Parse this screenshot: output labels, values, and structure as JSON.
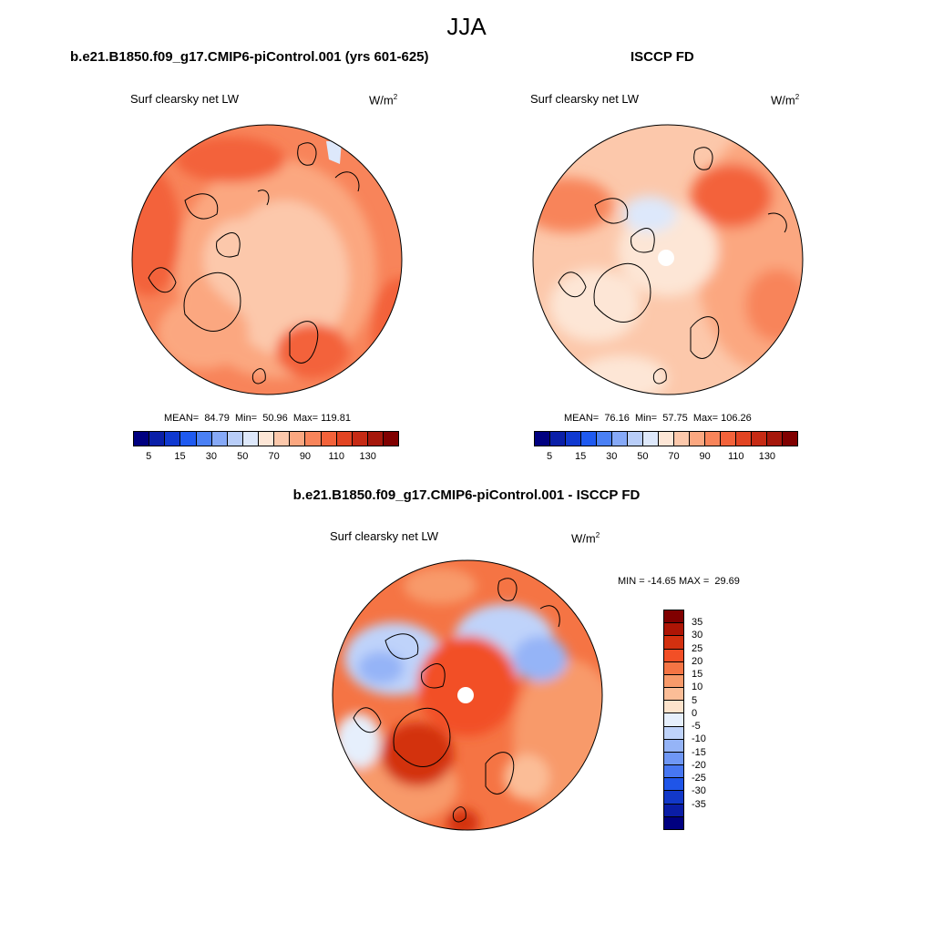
{
  "main_title": "JJA",
  "variable": "Surf clearsky net LW",
  "units_base": "W/m",
  "units_exp": "2",
  "panels": [
    {
      "title": "b.e21.B1850.f09_g17.CMIP6-piControl.001 (yrs 601-625)",
      "stats": "MEAN=  84.79  Min=  50.96  Max= 119.81"
    },
    {
      "title": "ISCCP FD",
      "stats": "MEAN=  76.16  Min=  57.75  Max= 106.26"
    },
    {
      "title": "b.e21.B1850.f09_g17.CMIP6-piControl.001 - ISCCP FD",
      "stats": "MIN = -14.65 MAX =  29.69"
    }
  ],
  "abs_colorbar": {
    "colors": [
      "#000080",
      "#0a1fa8",
      "#1039d0",
      "#1f5af0",
      "#4a80f5",
      "#86a9f7",
      "#b8cdf8",
      "#dde8fb",
      "#fde6d6",
      "#fcc8ab",
      "#fba780",
      "#f8845a",
      "#f3623a",
      "#e24422",
      "#c62a14",
      "#a6170b",
      "#800000"
    ],
    "labels": [
      "5",
      "15",
      "30",
      "50",
      "70",
      "90",
      "110",
      "130"
    ]
  },
  "diff_colorbar": {
    "colors": [
      "#800000",
      "#ad1505",
      "#d3300f",
      "#f24f26",
      "#f57444",
      "#f89a6a",
      "#fbbd97",
      "#fde3cc",
      "#e6effc",
      "#bfd3fa",
      "#95b4f7",
      "#6f97f5",
      "#4777f2",
      "#1f55e8",
      "#1238c8",
      "#0a1da6",
      "#000080"
    ],
    "labels": [
      "35",
      "30",
      "25",
      "20",
      "15",
      "10",
      "5",
      "0",
      "-5",
      "-10",
      "-15",
      "-20",
      "-25",
      "-30",
      "-35"
    ]
  }
}
